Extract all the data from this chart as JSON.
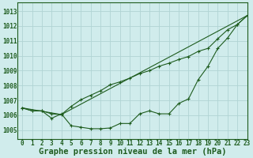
{
  "title": "Graphe pression niveau de la mer (hPa)",
  "bg_color": "#d0ecec",
  "plot_bg_color": "#d0ecec",
  "grid_color": "#b0d4d4",
  "line_color": "#1e5c1e",
  "xlim": [
    -0.5,
    23
  ],
  "ylim": [
    1004.4,
    1013.6
  ],
  "xticks": [
    0,
    1,
    2,
    3,
    4,
    5,
    6,
    7,
    8,
    9,
    10,
    11,
    12,
    13,
    14,
    15,
    16,
    17,
    18,
    19,
    20,
    21,
    22,
    23
  ],
  "yticks": [
    1005,
    1006,
    1007,
    1008,
    1009,
    1010,
    1011,
    1012,
    1013
  ],
  "series1_x": [
    0,
    1,
    2,
    3,
    4,
    5,
    6,
    7,
    8,
    9,
    10,
    11,
    12,
    13,
    14,
    15,
    16,
    17,
    18,
    19,
    20,
    21,
    22,
    23
  ],
  "series1_y": [
    1006.5,
    1006.3,
    1006.3,
    1005.8,
    1006.1,
    1005.3,
    1005.2,
    1005.1,
    1005.1,
    1005.15,
    1005.45,
    1005.45,
    1006.1,
    1006.3,
    1006.1,
    1006.1,
    1006.8,
    1007.1,
    1008.4,
    1009.3,
    1010.5,
    1011.2,
    1012.1,
    1012.7
  ],
  "series2_x": [
    0,
    1,
    2,
    3,
    4,
    5,
    6,
    7,
    8,
    9,
    10,
    11,
    12,
    13,
    14,
    15,
    16,
    17,
    18,
    19,
    20,
    21,
    22,
    23
  ],
  "series2_y": [
    1006.5,
    1006.3,
    1006.3,
    1006.1,
    1006.05,
    1006.6,
    1007.05,
    1007.35,
    1007.65,
    1008.05,
    1008.25,
    1008.5,
    1008.8,
    1009.0,
    1009.3,
    1009.5,
    1009.75,
    1009.95,
    1010.3,
    1010.5,
    1011.15,
    1011.75,
    1012.1,
    1012.7
  ],
  "series3_x": [
    0,
    4,
    23
  ],
  "series3_y": [
    1006.5,
    1006.05,
    1012.7
  ],
  "title_fontsize": 7.5,
  "tick_fontsize": 5.5
}
